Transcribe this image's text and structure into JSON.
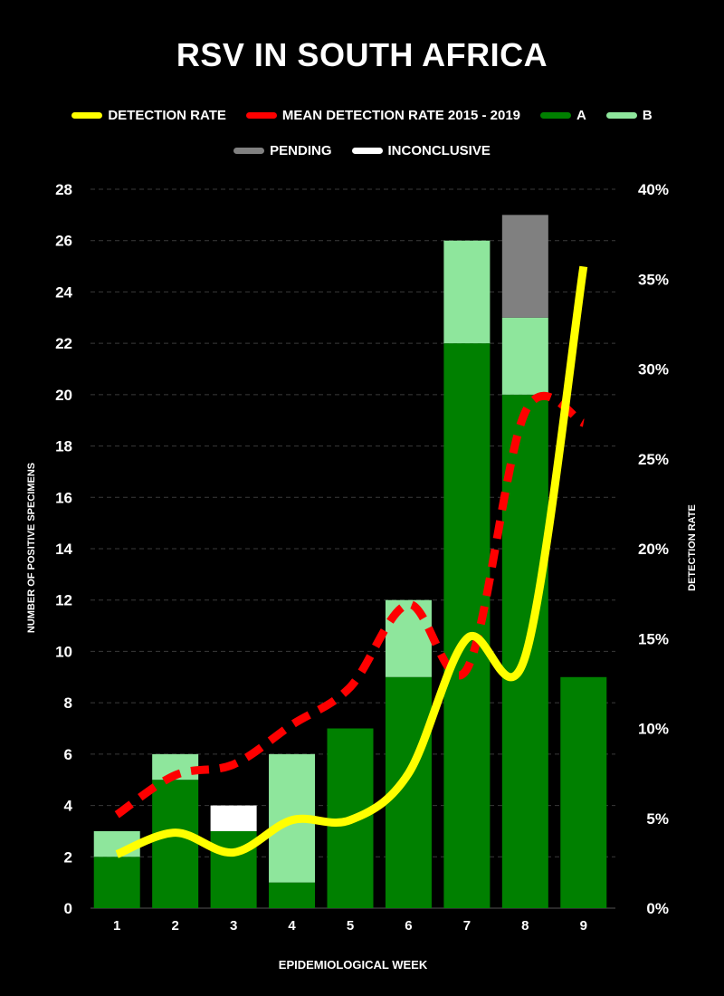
{
  "chart_data": {
    "type": "bar",
    "title": "RSV IN SOUTH AFRICA",
    "xlabel": "EPIDEMIOLOGICAL WEEK",
    "ylabel": "NUMBER OF POSITIVE SPECIMENS",
    "y2label": "DETECTION RATE",
    "categories": [
      "1",
      "2",
      "3",
      "4",
      "5",
      "6",
      "7",
      "8",
      "9"
    ],
    "stacked": true,
    "ylim": [
      0,
      28
    ],
    "yticks": [
      0,
      2,
      4,
      6,
      8,
      10,
      12,
      14,
      16,
      18,
      20,
      22,
      24,
      26,
      28
    ],
    "y2lim": [
      0,
      40
    ],
    "y2ticks": [
      "0%",
      "5%",
      "10%",
      "15%",
      "20%",
      "25%",
      "30%",
      "35%",
      "40%"
    ],
    "grid": true,
    "legend_position": "top",
    "series": [
      {
        "name": "A",
        "color": "#008000",
        "values": [
          2,
          5,
          3,
          1,
          7,
          9,
          22,
          20,
          9
        ]
      },
      {
        "name": "B",
        "color": "#8ee69c",
        "values": [
          1,
          1,
          0,
          5,
          0,
          3,
          4,
          3,
          0
        ]
      },
      {
        "name": "PENDING",
        "color": "#808080",
        "values": [
          0,
          0,
          0,
          0,
          0,
          0,
          0,
          4,
          0
        ]
      },
      {
        "name": "INCONCLUSIVE",
        "color": "#ffffff",
        "values": [
          0,
          0,
          1,
          0,
          0,
          0,
          0,
          0,
          0
        ]
      }
    ],
    "lines": [
      {
        "name": "DETECTION RATE",
        "color": "#ffff00",
        "style": "solid",
        "axis": "right",
        "values": [
          3.0,
          4.2,
          3.1,
          4.9,
          4.9,
          7.5,
          15.0,
          14.0,
          35.7
        ]
      },
      {
        "name": "MEAN DETECTION RATE 2015 - 2019",
        "color": "#ff0000",
        "style": "dashed",
        "axis": "right",
        "values": [
          5.2,
          7.4,
          8.0,
          10.2,
          12.3,
          16.9,
          13.3,
          27.6,
          27.0
        ]
      }
    ]
  },
  "legend": [
    {
      "label": "DETECTION RATE",
      "color": "#ffff00"
    },
    {
      "label": "MEAN DETECTION RATE 2015 - 2019",
      "color": "#ff0000"
    },
    {
      "label": "A",
      "color": "#008000"
    },
    {
      "label": "B",
      "color": "#8ee69c"
    },
    {
      "label": "PENDING",
      "color": "#808080"
    },
    {
      "label": "INCONCLUSIVE",
      "color": "#ffffff"
    }
  ]
}
